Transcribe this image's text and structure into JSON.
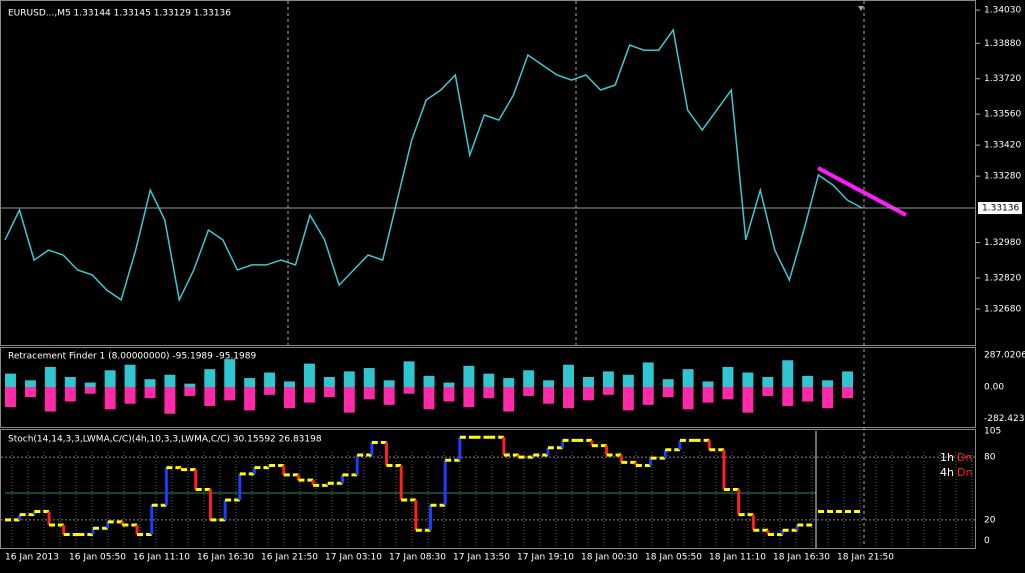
{
  "header": {
    "symbol_line": "EURUSD...,M5  1.33144 1.33145 1.33129 1.33136"
  },
  "price_panel": {
    "ylim": [
      1.32522,
      1.34071
    ],
    "yticks": [
      {
        "value": 1.3403,
        "label": "1.34030"
      },
      {
        "value": 1.3388,
        "label": "1.33880"
      },
      {
        "value": 1.3372,
        "label": "1.33720"
      },
      {
        "value": 1.3356,
        "label": "1.33560"
      },
      {
        "value": 1.3342,
        "label": "1.33420"
      },
      {
        "value": 1.3328,
        "label": "1.33280"
      },
      {
        "value": 1.3298,
        "label": "1.32980"
      },
      {
        "value": 1.3282,
        "label": "1.32820"
      },
      {
        "value": 1.3268,
        "label": "1.32680"
      }
    ],
    "current_price": {
      "value": 1.33136,
      "label": "1.33136"
    },
    "prices": [
      1.32992,
      1.33127,
      1.32901,
      1.32946,
      1.32924,
      1.32856,
      1.32834,
      1.32766,
      1.32721,
      1.32946,
      1.33217,
      1.33082,
      1.32721,
      1.32856,
      1.33037,
      1.32992,
      1.32856,
      1.32879,
      1.32879,
      1.32901,
      1.32879,
      1.33104,
      1.32992,
      1.32788,
      1.32856,
      1.32924,
      1.32901,
      1.33172,
      1.33443,
      1.33624,
      1.33669,
      1.33737,
      1.33375,
      1.33556,
      1.33533,
      1.33646,
      1.33827,
      1.33782,
      1.33737,
      1.33714,
      1.33737,
      1.33669,
      1.33691,
      1.33872,
      1.33849,
      1.33849,
      1.3394,
      1.33578,
      1.33488,
      1.33578,
      1.33669,
      1.32992,
      1.33217,
      1.32946,
      1.32811,
      1.33037,
      1.33285,
      1.3324,
      1.33172,
      1.33136
    ]
  },
  "indicator_panel": {
    "label": "Retracement Finder 1 (8.00000000) -95.1989 -95.1989",
    "ylim": [
      -350,
      341
    ],
    "yticks": [
      287.0206,
      {
        "value": 0,
        "label": "0.00"
      },
      -282.4239
    ],
    "up": [
      120,
      60,
      180,
      90,
      40,
      150,
      200,
      70,
      110,
      30,
      160,
      250,
      80,
      130,
      50,
      210,
      90,
      140,
      170,
      60,
      230,
      100,
      40,
      190,
      120,
      80,
      150,
      60,
      200,
      90,
      140,
      110,
      220,
      70,
      160,
      50,
      180,
      130,
      90,
      240,
      100,
      60,
      140
    ],
    "down": [
      -180,
      -90,
      -220,
      -130,
      -60,
      -200,
      -150,
      -100,
      -240,
      -80,
      -170,
      -120,
      -210,
      -70,
      -190,
      -140,
      -90,
      -230,
      -110,
      -160,
      -60,
      -200,
      -130,
      -180,
      -100,
      -220,
      -80,
      -150,
      -190,
      -120,
      -70,
      -210,
      -160,
      -90,
      -200,
      -140,
      -110,
      -230,
      -80,
      -170,
      -130,
      -190,
      -100
    ]
  },
  "stoch_panel": {
    "label": "Stoch(14,14,3,3,LWMA,C/C)(4h,10,3,3,LWMA,C/C) 30.15592 26.83198",
    "ylim": [
      -6,
      105
    ],
    "yticks": [
      105,
      80,
      20,
      0
    ],
    "values": [
      20,
      25,
      28,
      15,
      6,
      6,
      12,
      18,
      15,
      6,
      34,
      70,
      68,
      49,
      20,
      39,
      64,
      70,
      72,
      63,
      58,
      53,
      55,
      63,
      82,
      94,
      72,
      39,
      10,
      34,
      77,
      99,
      99,
      99,
      82,
      80,
      82,
      89,
      96,
      96,
      91,
      82,
      75,
      72,
      79,
      87,
      96,
      96,
      87,
      49,
      25,
      10,
      6,
      10,
      15
    ],
    "current_level": 28,
    "signals": [
      {
        "timeframe": "1h",
        "direction": "Dn"
      },
      {
        "timeframe": "4h",
        "direction": "Dn"
      }
    ]
  },
  "time_axis": [
    "16 Jan 2013",
    "16 Jan 05:50",
    "16 Jan 11:10",
    "16 Jan 16:30",
    "16 Jan 21:50",
    "17 Jan 03:10",
    "17 Jan 08:30",
    "17 Jan 13:50",
    "17 Jan 19:10",
    "18 Jan 00:30",
    "18 Jan 05:50",
    "18 Jan 11:10",
    "18 Jan 16:30",
    "18 Jan 21:50"
  ]
}
